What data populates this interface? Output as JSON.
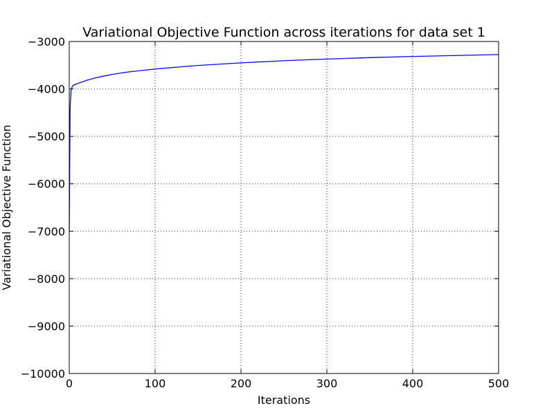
{
  "chart_data": {
    "type": "line",
    "title": "Variational Objective Function across iterations for data set 1",
    "xlabel": "Iterations",
    "ylabel": "Variational Objective Function",
    "xlim": [
      0,
      500
    ],
    "ylim": [
      -10000,
      -3000
    ],
    "xticks": [
      0,
      100,
      200,
      300,
      400,
      500
    ],
    "xtick_labels": [
      "0",
      "100",
      "200",
      "300",
      "400",
      "500"
    ],
    "yticks": [
      -3000,
      -4000,
      -5000,
      -6000,
      -7000,
      -8000,
      -9000,
      -10000
    ],
    "ytick_labels": [
      "−3000",
      "−4000",
      "−5000",
      "−6000",
      "−7000",
      "−8000",
      "−9000",
      "−10000"
    ],
    "grid": true,
    "series": [
      {
        "color": "#0000ff",
        "x": [
          0,
          1,
          2,
          3,
          4,
          5,
          10,
          20,
          30,
          40,
          50,
          60,
          70,
          80,
          100,
          120,
          150,
          200,
          250,
          300,
          350,
          400,
          450,
          500
        ],
        "y": [
          -7000,
          -4400,
          -4050,
          -3970,
          -3935,
          -3920,
          -3885,
          -3820,
          -3770,
          -3730,
          -3695,
          -3665,
          -3640,
          -3620,
          -3580,
          -3550,
          -3505,
          -3450,
          -3405,
          -3370,
          -3340,
          -3315,
          -3295,
          -3275
        ]
      }
    ]
  }
}
